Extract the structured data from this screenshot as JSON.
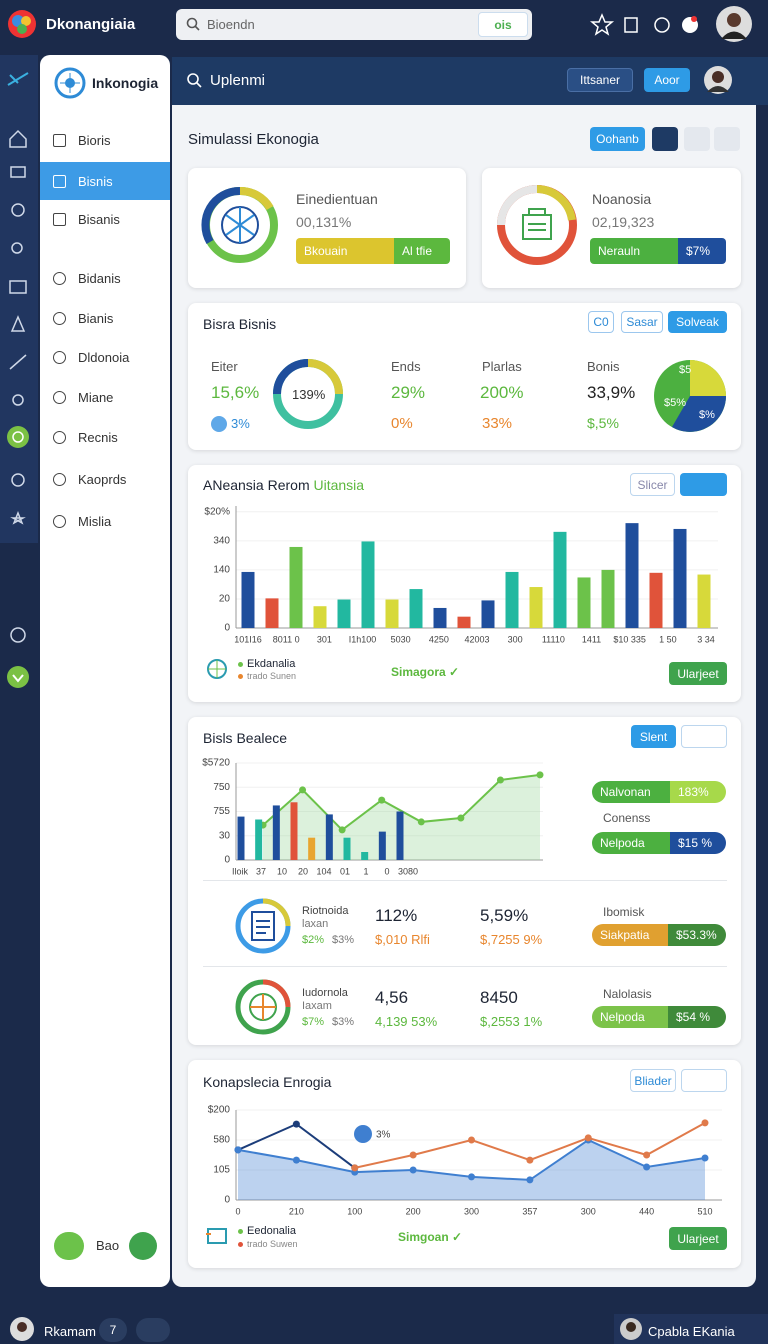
{
  "topbar": {
    "app_name": "Dkonangiaia",
    "search_placeholder": "Bioendn",
    "search_button": "ois"
  },
  "sidebar": {
    "title": "Inkonogia",
    "items": [
      "Bioris",
      "Bisnis",
      "Bisanis",
      "Bidanis",
      "Bianis",
      "Dldonoia",
      "Miane",
      "Recnis",
      "Kaoprds",
      "Mislia"
    ],
    "footer_label": "Bao"
  },
  "subbar": {
    "search": "Uplenmi",
    "buttons": [
      "Ittsaner",
      "Aoor"
    ]
  },
  "page": {
    "title": "Simulassi Ekonogia",
    "button": "Oohanb"
  },
  "kpi_cards": [
    {
      "title": "Einedientuan",
      "value": "00,131%",
      "bar_left": "Bkouain",
      "bar_right": "Al tfie"
    },
    {
      "title": "Noanosia",
      "value": "02,19,323",
      "bar_left": "Nerauln",
      "bar_right": "$7%"
    }
  ],
  "summary": {
    "title": "Bisra Bisnis",
    "buttons": [
      "C0",
      "Sasar",
      "Solveak"
    ],
    "stats": [
      {
        "label": "Eiter",
        "value": "15,6%",
        "sub": "3%"
      },
      {
        "label": "Ends",
        "value": "29%",
        "sub": "0%"
      },
      {
        "label": "Plarlas",
        "value": "200%",
        "sub": "33%"
      },
      {
        "label": "Bonis",
        "value": "33,9%",
        "sub": "$,5%"
      }
    ],
    "donut_label": "139%",
    "pie_labels": [
      "$5",
      "$5%",
      "$%"
    ]
  },
  "bar_chart": {
    "type": "bar",
    "title": "ANeansia Rerom",
    "title_accent": "Uitansia",
    "button": "Slicer",
    "x_labels": [
      "101I16",
      "8011 0",
      "301",
      "I1h100",
      "5030",
      "4250",
      "42003",
      "300",
      "11110",
      "1411",
      "$10 335",
      "1 50",
      "3 34"
    ],
    "values": [
      193,
      102,
      279,
      75,
      98,
      298,
      98,
      134,
      69,
      39,
      95,
      193,
      141,
      331,
      174,
      200,
      361,
      190,
      341,
      184
    ],
    "colors": [
      "#1f4e9c",
      "#e0533a",
      "#6cc24a",
      "#d7d93a",
      "#22b8a0",
      "#22b8a0",
      "#d7d93a",
      "#22b8a0",
      "#1f4e9c",
      "#e0533a",
      "#1f4e9c",
      "#22b8a0",
      "#d7d93a",
      "#22b8a0",
      "#6cc24a",
      "#6cc24a",
      "#1f4e9c",
      "#e0533a",
      "#1f4e9c",
      "#d7d93a"
    ],
    "ylim": [
      0,
      420
    ],
    "yticks": [
      0,
      {
        "value": 100,
        "label": "20"
      },
      {
        "value": 200,
        "label": "140"
      },
      {
        "value": 300,
        "label": "340"
      },
      {
        "value": 400,
        "label": "$20%"
      }
    ],
    "legend": [
      "Ekdanalia",
      "trado Sunen"
    ],
    "status": "Simagora ✓",
    "action": "Ularjeet"
  },
  "balance": {
    "title": "Bisls Bealece",
    "button": "Slent",
    "chart": {
      "type": "bar-line",
      "bar_values": [
        179,
        167,
        225,
        238,
        92,
        188,
        92,
        33,
        117,
        200
      ],
      "bar_colors": [
        "#1f4e9c",
        "#22b8a0",
        "#1f4e9c",
        "#e0533a",
        "#e8a530",
        "#1f4e9c",
        "#22b8a0",
        "#22b8a0",
        "#1f4e9c",
        "#1f4e9c"
      ],
      "line_values": [
        144,
        289,
        124,
        247,
        157,
        173,
        330,
        351
      ],
      "line_color": "#6cc24a",
      "ylim": [
        0,
        400
      ],
      "yticks": [
        0,
        {
          "value": 100,
          "label": "30"
        },
        {
          "value": 200,
          "label": "755"
        },
        {
          "value": 300,
          "label": "750"
        },
        {
          "value": 400,
          "label": "$5720"
        }
      ],
      "x_labels": [
        "Iloik",
        "37",
        "10",
        "20",
        "104",
        "01",
        "1",
        "0",
        "3080"
      ]
    },
    "pills": [
      {
        "label": "Nalvonan",
        "value": "183%"
      },
      {
        "label": "Nelpoda",
        "value": "$15 %"
      }
    ],
    "pill_caption": "Conenss",
    "rows": [
      {
        "name": "Riotnoida",
        "sub": "laxan",
        "small1": "$2%",
        "small2": "$3%",
        "v1": "112%",
        "v1_sub": "$,010 Rlfi",
        "v2": "5,59%",
        "v2_sub": "$,7255 9%",
        "caption": "Ibomisk",
        "pill_label": "Siakpatia",
        "pill_value": "$53.3%"
      },
      {
        "name": "Iudornola",
        "sub": "Iaxam",
        "small1": "$7%",
        "small2": "$3%",
        "v1": "4,56",
        "v1_sub": "4,139 53%",
        "v2": "8450",
        "v2_sub": "$,2553 1%",
        "caption": "Nalolasis",
        "pill_label": "Nelpoda",
        "pill_value": "$54 %"
      }
    ]
  },
  "energy": {
    "title": "Konapslecia Enrogia",
    "button": "Bliader",
    "chart": {
      "type": "line",
      "x_labels": [
        "0",
        "210",
        "100",
        "200",
        "300",
        "357",
        "300",
        "440",
        "510"
      ],
      "series": [
        {
          "color": "#1c3d7a",
          "values": [
            167,
            253,
            107,
            null,
            null,
            null,
            null,
            null,
            null
          ]
        },
        {
          "color": "#3f7fd0",
          "values": [
            167,
            133,
            93,
            100,
            77,
            67,
            200,
            110,
            140
          ],
          "area": true
        },
        {
          "color": "#e07a4a",
          "values": [
            null,
            null,
            107,
            150,
            200,
            133,
            207,
            150,
            257
          ]
        }
      ],
      "ylim": [
        0,
        300
      ],
      "yticks": [
        0,
        {
          "value": 100,
          "label": "105"
        },
        {
          "value": 200,
          "label": "580"
        },
        {
          "value": 300,
          "label": "$200"
        }
      ],
      "annotation": "3%"
    },
    "legend": [
      "Eedonalia",
      "trado Suwen"
    ],
    "status": "Simgoan ✓",
    "action": "Ularjeet"
  },
  "footer": {
    "user": "Rkamam",
    "badge": "7",
    "right_user": "Cpabla EKania"
  }
}
